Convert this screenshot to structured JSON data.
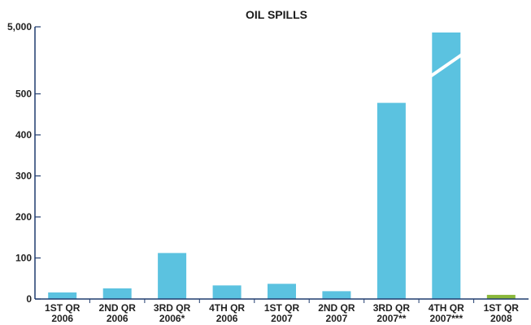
{
  "chart_data": {
    "type": "bar",
    "title": "OIL SPILLS",
    "categories": [
      [
        "1ST QR",
        "2006"
      ],
      [
        "2ND QR",
        "2006"
      ],
      [
        "3RD QR",
        "2006*"
      ],
      [
        "4TH QR",
        "2006"
      ],
      [
        "1ST QR",
        "2007"
      ],
      [
        "2ND QR",
        "2007"
      ],
      [
        "3RD QR",
        "2007**"
      ],
      [
        "4TH QR",
        "2007***"
      ],
      [
        "1ST QR",
        "2008"
      ]
    ],
    "values": [
      16,
      26,
      112,
      33,
      37,
      19,
      478,
      4900,
      10
    ],
    "bar_colors": [
      "#5bc2e0",
      "#5bc2e0",
      "#5bc2e0",
      "#5bc2e0",
      "#5bc2e0",
      "#5bc2e0",
      "#5bc2e0",
      "#5bc2e0",
      "#8ab83a"
    ],
    "y_ticks": [
      {
        "value": 0,
        "label": "0"
      },
      {
        "value": 100,
        "label": "100"
      },
      {
        "value": 200,
        "label": "200"
      },
      {
        "value": 300,
        "label": "300"
      },
      {
        "value": 400,
        "label": "400"
      },
      {
        "value": 500,
        "label": "500"
      },
      {
        "value": 5000,
        "label": "5,000"
      }
    ],
    "ylim": [
      0,
      5000
    ],
    "axis_break": true,
    "grid": false,
    "xlabel": "",
    "ylabel": ""
  }
}
